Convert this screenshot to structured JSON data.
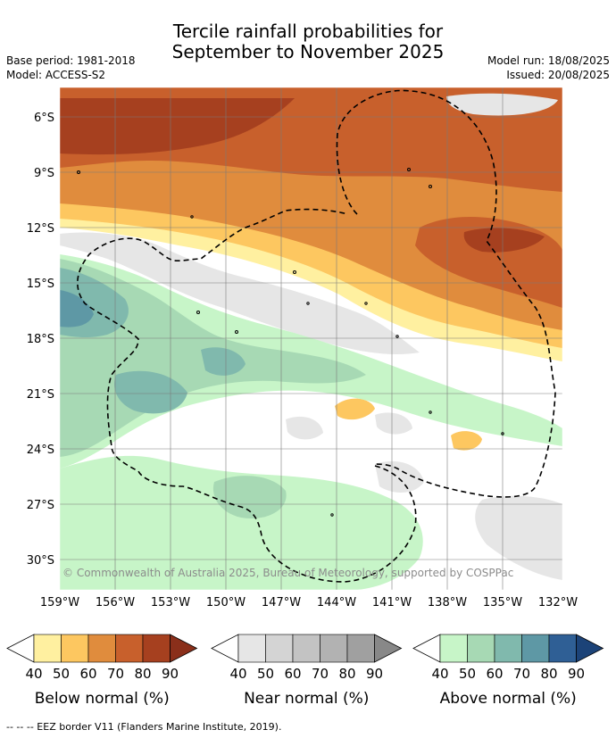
{
  "title_line1": "Tercile rainfall probabilities for",
  "title_line2": "September to November 2025",
  "base_period": "Base period: 1981-2018",
  "model": "Model: ACCESS-S2",
  "model_run": "Model run: 18/08/2025",
  "issued": "Issued: 20/08/2025",
  "copyright": "© Commonwealth of Australia 2025, Bureau of Meteorology, supported by COSPPac",
  "lat_labels": [
    "6°S",
    "9°S",
    "12°S",
    "15°S",
    "18°S",
    "21°S",
    "24°S",
    "27°S",
    "30°S"
  ],
  "lon_labels": [
    "159°W",
    "156°W",
    "153°W",
    "150°W",
    "147°W",
    "144°W",
    "141°W",
    "138°W",
    "135°W",
    "132°W"
  ],
  "legends": [
    {
      "label": "Below normal (%)",
      "ticks": [
        "40",
        "50",
        "60",
        "70",
        "80",
        "90"
      ],
      "colors": [
        "#fff0a0",
        "#fdc760",
        "#e08c3d",
        "#c8602c",
        "#a6401f",
        "#8a2f1a"
      ]
    },
    {
      "label": "Near normal (%)",
      "ticks": [
        "40",
        "50",
        "60",
        "70",
        "80",
        "90"
      ],
      "colors": [
        "#e6e6e6",
        "#d4d4d4",
        "#c3c3c3",
        "#b2b2b2",
        "#a0a0a0",
        "#888888"
      ]
    },
    {
      "label": "Above normal (%)",
      "ticks": [
        "40",
        "50",
        "60",
        "70",
        "80",
        "90"
      ],
      "colors": [
        "#c7f5c8",
        "#a7d9b4",
        "#80b9ad",
        "#5e98a5",
        "#2f5f95",
        "#1c4378"
      ]
    }
  ],
  "footer": "--  --  -- EEZ border V11 (Flanders Marine Institute, 2019)."
}
